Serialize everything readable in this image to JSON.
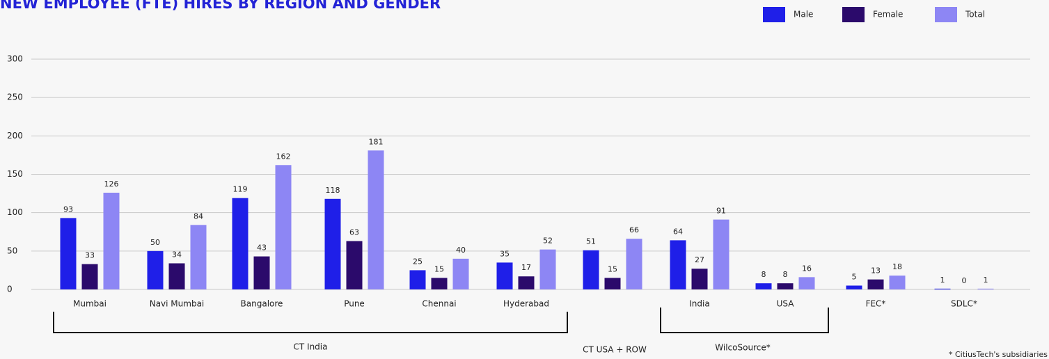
{
  "chart_data": {
    "type": "bar",
    "title": "NEW EMPLOYEE (FTE) HIRES BY REGION AND GENDER",
    "categories": [
      "Mumbai",
      "Navi Mumbai",
      "Bangalore",
      "Pune",
      "Chennai",
      "Hyderabad",
      null,
      "India",
      "USA",
      "FEC*",
      "SDLC*"
    ],
    "series": [
      {
        "name": "Male",
        "color": "#1f1fe8",
        "values": [
          93,
          50,
          119,
          118,
          25,
          35,
          51,
          64,
          8,
          5,
          1
        ]
      },
      {
        "name": "Female",
        "color": "#2b0a6b",
        "values": [
          33,
          34,
          43,
          63,
          15,
          17,
          15,
          27,
          8,
          13,
          0
        ]
      },
      {
        "name": "Total",
        "color": "#8d86f4",
        "values": [
          126,
          84,
          162,
          181,
          40,
          52,
          66,
          91,
          16,
          18,
          1
        ]
      }
    ],
    "groups": [
      "CT India",
      "CT USA + ROW",
      "WilcoSource*"
    ],
    "footnote": "* CitiusTech's subsidiaries",
    "ylim": [
      0,
      300
    ],
    "yticks": [
      0,
      50,
      100,
      150,
      200,
      250,
      300
    ],
    "grid": true,
    "legend": "top-right"
  }
}
